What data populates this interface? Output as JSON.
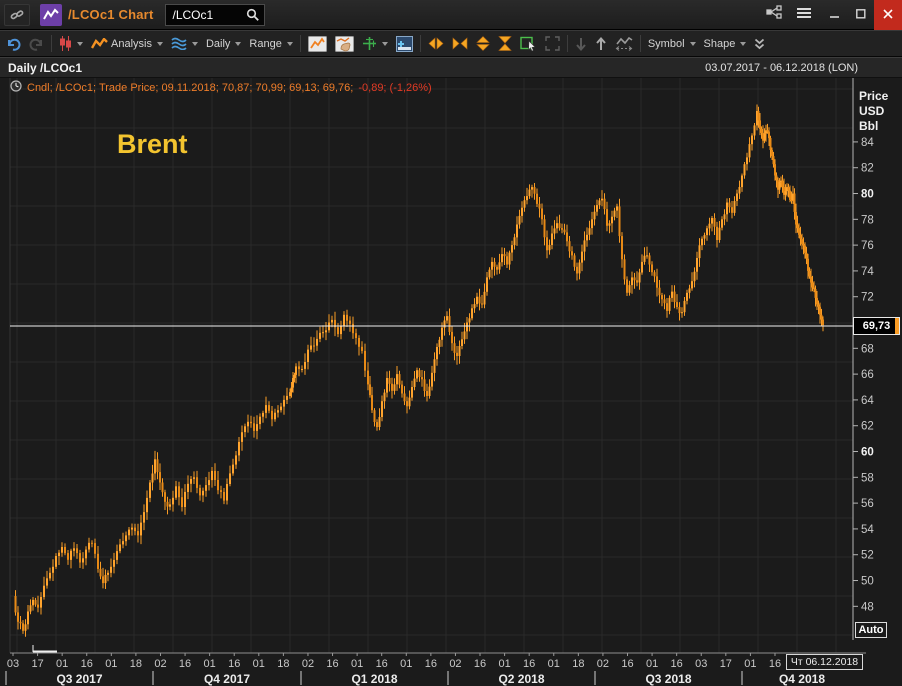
{
  "titlebar": {
    "title": "/LCOc1 Chart",
    "search": {
      "value": "/LCOc1",
      "placeholder": ""
    },
    "window_controls": {
      "minimize": "minimize",
      "maximize": "maximize",
      "close": "close"
    }
  },
  "toolbar": {
    "items": [
      {
        "name": "undo",
        "icon": "undo-icon"
      },
      {
        "name": "redo",
        "icon": "redo-icon",
        "disabled": true
      },
      {
        "name": "sep"
      },
      {
        "name": "candle-style",
        "icon": "candlestick-icon",
        "caret": true
      },
      {
        "name": "analysis",
        "icon": "analysis-zigzag-icon",
        "label": "Analysis",
        "caret": true
      },
      {
        "name": "wave-overlay",
        "icon": "waves-icon",
        "caret": true
      },
      {
        "name": "interval",
        "label": "Daily",
        "caret": true
      },
      {
        "name": "range",
        "label": "Range",
        "caret": true
      },
      {
        "name": "sep"
      },
      {
        "name": "chart-type",
        "icon": "line-chart-thumb-icon"
      },
      {
        "name": "annotate",
        "icon": "hand-chart-thumb-icon"
      },
      {
        "name": "axis-settings",
        "icon": "green-axis-icon",
        "caret": true
      },
      {
        "name": "add-panel",
        "icon": "add-panel-icon"
      },
      {
        "name": "sep"
      },
      {
        "name": "expand-horizontal",
        "icon": "arrows-out-h-icon"
      },
      {
        "name": "collapse-horizontal",
        "icon": "arrows-in-h-icon"
      },
      {
        "name": "expand-vertical",
        "icon": "arrows-out-v-icon"
      },
      {
        "name": "collapse-vertical",
        "icon": "hourglass-icon"
      },
      {
        "name": "select-region",
        "icon": "select-rect-icon"
      },
      {
        "name": "maximize-chart",
        "icon": "expand-icon",
        "disabled": true
      },
      {
        "name": "sep"
      },
      {
        "name": "move-down",
        "icon": "arrow-down-icon",
        "disabled": true
      },
      {
        "name": "move-up",
        "icon": "arrow-up-icon"
      },
      {
        "name": "compare",
        "icon": "compare-zigzag-icon"
      },
      {
        "name": "sep"
      },
      {
        "name": "symbol",
        "label": "Symbol",
        "caret": true
      },
      {
        "name": "shape",
        "label": "Shape",
        "caret": true
      },
      {
        "name": "more",
        "icon": "chevrons-down-icon"
      }
    ]
  },
  "header": {
    "left": "Daily /LCOc1",
    "right": "03.07.2017 - 06.12.2018 (LON)"
  },
  "legend": {
    "main": "Cndl; /LCOc1; Trade Price; 09.11.2018; 70,87; 70,99; 69,13; 69,76;",
    "change": "-0,89; (-1,26%)"
  },
  "colors": {
    "candle_up": "#ffa42e",
    "candle_down": "#e88a16",
    "annotation_gold": "#f3c42f",
    "legend_orange": "#ef7d2a",
    "negative_red": "#e23b25",
    "current_line": "#f2f2f2",
    "title_orange": "#e78a2e",
    "app_icon_purple": "#6d3fa8",
    "close_button_red": "#c22a1d"
  },
  "chart_data": {
    "type": "candlestick",
    "annotation": "Brent",
    "symbol": "/LCOc1",
    "interval": "Daily",
    "visible_range": "03.07.2017 - 06.12.2018 (LON)",
    "y_axis": {
      "title_lines": [
        "Price",
        "USD",
        "Bbl"
      ],
      "ticks": [
        84,
        82,
        80,
        78,
        76,
        74,
        72,
        68,
        66,
        64,
        62,
        60,
        58,
        56,
        54,
        52,
        50,
        48
      ],
      "bold_ticks": [
        80,
        60
      ],
      "range": [
        45.5,
        88
      ],
      "auto_label": "Auto"
    },
    "current_price": {
      "value": 69.73,
      "label": "69,73"
    },
    "x_axis": {
      "ticks": [
        "03",
        "17",
        "01",
        "16",
        "01",
        "18",
        "02",
        "16",
        "01",
        "16",
        "01",
        "18",
        "02",
        "16",
        "01",
        "16",
        "01",
        "16",
        "02",
        "16",
        "01",
        "16",
        "01",
        "18",
        "02",
        "16",
        "01",
        "16",
        "03",
        "17",
        "01",
        "16"
      ],
      "quarters": [
        "Q3 2017",
        "Q4 2017",
        "Q1 2018",
        "Q2 2018",
        "Q3 2018",
        "Q4 2018"
      ],
      "end_date_label": "Чт 06.12.2018"
    },
    "series": [
      {
        "name": "/LCOc1 Trade Price",
        "color": "#f99c25",
        "points": [
          [
            13,
            48.8
          ],
          [
            18,
            46.8
          ],
          [
            23,
            46.1
          ],
          [
            28,
            47.6
          ],
          [
            33,
            48.5
          ],
          [
            38,
            47.9
          ],
          [
            44,
            49.6
          ],
          [
            50,
            50.6
          ],
          [
            56,
            51.9
          ],
          [
            62,
            52.6
          ],
          [
            68,
            51.6
          ],
          [
            74,
            52.5
          ],
          [
            80,
            51.4
          ],
          [
            86,
            52.4
          ],
          [
            92,
            52.9
          ],
          [
            98,
            50.9
          ],
          [
            103,
            49.8
          ],
          [
            108,
            50.6
          ],
          [
            114,
            51.6
          ],
          [
            120,
            52.8
          ],
          [
            126,
            53.5
          ],
          [
            132,
            54.1
          ],
          [
            138,
            53.5
          ],
          [
            144,
            55.3
          ],
          [
            150,
            57.6
          ],
          [
            155,
            59.4
          ],
          [
            160,
            57.6
          ],
          [
            165,
            56.1
          ],
          [
            170,
            55.9
          ],
          [
            176,
            57.3
          ],
          [
            182,
            55.7
          ],
          [
            188,
            57.5
          ],
          [
            194,
            58.0
          ],
          [
            200,
            56.6
          ],
          [
            206,
            57.4
          ],
          [
            212,
            58.5
          ],
          [
            218,
            57.0
          ],
          [
            224,
            56.2
          ],
          [
            230,
            58.3
          ],
          [
            236,
            59.7
          ],
          [
            242,
            61.5
          ],
          [
            248,
            62.3
          ],
          [
            254,
            61.6
          ],
          [
            260,
            62.7
          ],
          [
            266,
            63.6
          ],
          [
            272,
            62.5
          ],
          [
            278,
            63.2
          ],
          [
            284,
            64.0
          ],
          [
            290,
            64.6
          ],
          [
            293,
            65.7
          ],
          [
            296,
            66.6
          ],
          [
            302,
            66.4
          ],
          [
            308,
            67.9
          ],
          [
            314,
            68.2
          ],
          [
            320,
            69.2
          ],
          [
            326,
            69.4
          ],
          [
            332,
            70.2
          ],
          [
            338,
            69.1
          ],
          [
            344,
            70.6
          ],
          [
            350,
            69.9
          ],
          [
            356,
            68.8
          ],
          [
            362,
            67.8
          ],
          [
            368,
            65.2
          ],
          [
            372,
            63.2
          ],
          [
            377,
            61.9
          ],
          [
            382,
            63.9
          ],
          [
            387,
            65.7
          ],
          [
            392,
            64.7
          ],
          [
            397,
            66.0
          ],
          [
            402,
            64.5
          ],
          [
            407,
            63.5
          ],
          [
            412,
            65.0
          ],
          [
            417,
            66.3
          ],
          [
            422,
            65.6
          ],
          [
            427,
            64.3
          ],
          [
            432,
            66.1
          ],
          [
            437,
            68.1
          ],
          [
            442,
            69.6
          ],
          [
            447,
            70.5
          ],
          [
            452,
            68.4
          ],
          [
            457,
            67.4
          ],
          [
            462,
            68.7
          ],
          [
            467,
            70.0
          ],
          [
            472,
            71.1
          ],
          [
            477,
            72.0
          ],
          [
            482,
            71.4
          ],
          [
            487,
            73.5
          ],
          [
            492,
            74.7
          ],
          [
            497,
            74.1
          ],
          [
            502,
            75.3
          ],
          [
            507,
            74.5
          ],
          [
            512,
            76.0
          ],
          [
            517,
            77.6
          ],
          [
            522,
            78.9
          ],
          [
            527,
            79.8
          ],
          [
            532,
            80.5
          ],
          [
            537,
            79.2
          ],
          [
            542,
            78.0
          ],
          [
            547,
            75.6
          ],
          [
            552,
            76.9
          ],
          [
            557,
            77.7
          ],
          [
            562,
            77.2
          ],
          [
            567,
            76.3
          ],
          [
            572,
            75.2
          ],
          [
            577,
            73.8
          ],
          [
            582,
            75.5
          ],
          [
            587,
            76.8
          ],
          [
            592,
            78.0
          ],
          [
            597,
            79.1
          ],
          [
            602,
            79.6
          ],
          [
            607,
            77.5
          ],
          [
            612,
            78.2
          ],
          [
            617,
            79.0
          ],
          [
            622,
            74.9
          ],
          [
            627,
            72.3
          ],
          [
            632,
            73.5
          ],
          [
            637,
            73.1
          ],
          [
            642,
            74.7
          ],
          [
            647,
            75.2
          ],
          [
            652,
            73.9
          ],
          [
            657,
            72.7
          ],
          [
            662,
            71.8
          ],
          [
            667,
            70.9
          ],
          [
            672,
            72.4
          ],
          [
            677,
            71.2
          ],
          [
            682,
            70.8
          ],
          [
            687,
            72.3
          ],
          [
            692,
            73.2
          ],
          [
            697,
            75.0
          ],
          [
            702,
            76.5
          ],
          [
            707,
            77.3
          ],
          [
            712,
            78.1
          ],
          [
            717,
            76.4
          ],
          [
            722,
            78.0
          ],
          [
            727,
            79.3
          ],
          [
            732,
            78.5
          ],
          [
            737,
            80.0
          ],
          [
            742,
            81.4
          ],
          [
            747,
            82.8
          ],
          [
            752,
            84.5
          ],
          [
            757,
            86.4
          ],
          [
            760,
            85.0
          ],
          [
            763,
            84.1
          ],
          [
            766,
            84.9
          ],
          [
            769,
            84.3
          ],
          [
            772,
            82.9
          ],
          [
            775,
            81.4
          ],
          [
            778,
            80.3
          ],
          [
            781,
            81.0
          ],
          [
            784,
            79.9
          ],
          [
            787,
            80.5
          ],
          [
            790,
            79.5
          ],
          [
            793,
            80.0
          ],
          [
            796,
            77.6
          ],
          [
            799,
            76.8
          ],
          [
            802,
            76.1
          ],
          [
            805,
            75.4
          ],
          [
            808,
            74.0
          ],
          [
            811,
            73.1
          ],
          [
            814,
            72.6
          ],
          [
            817,
            71.4
          ],
          [
            820,
            70.6
          ],
          [
            823,
            69.8
          ]
        ]
      }
    ]
  }
}
